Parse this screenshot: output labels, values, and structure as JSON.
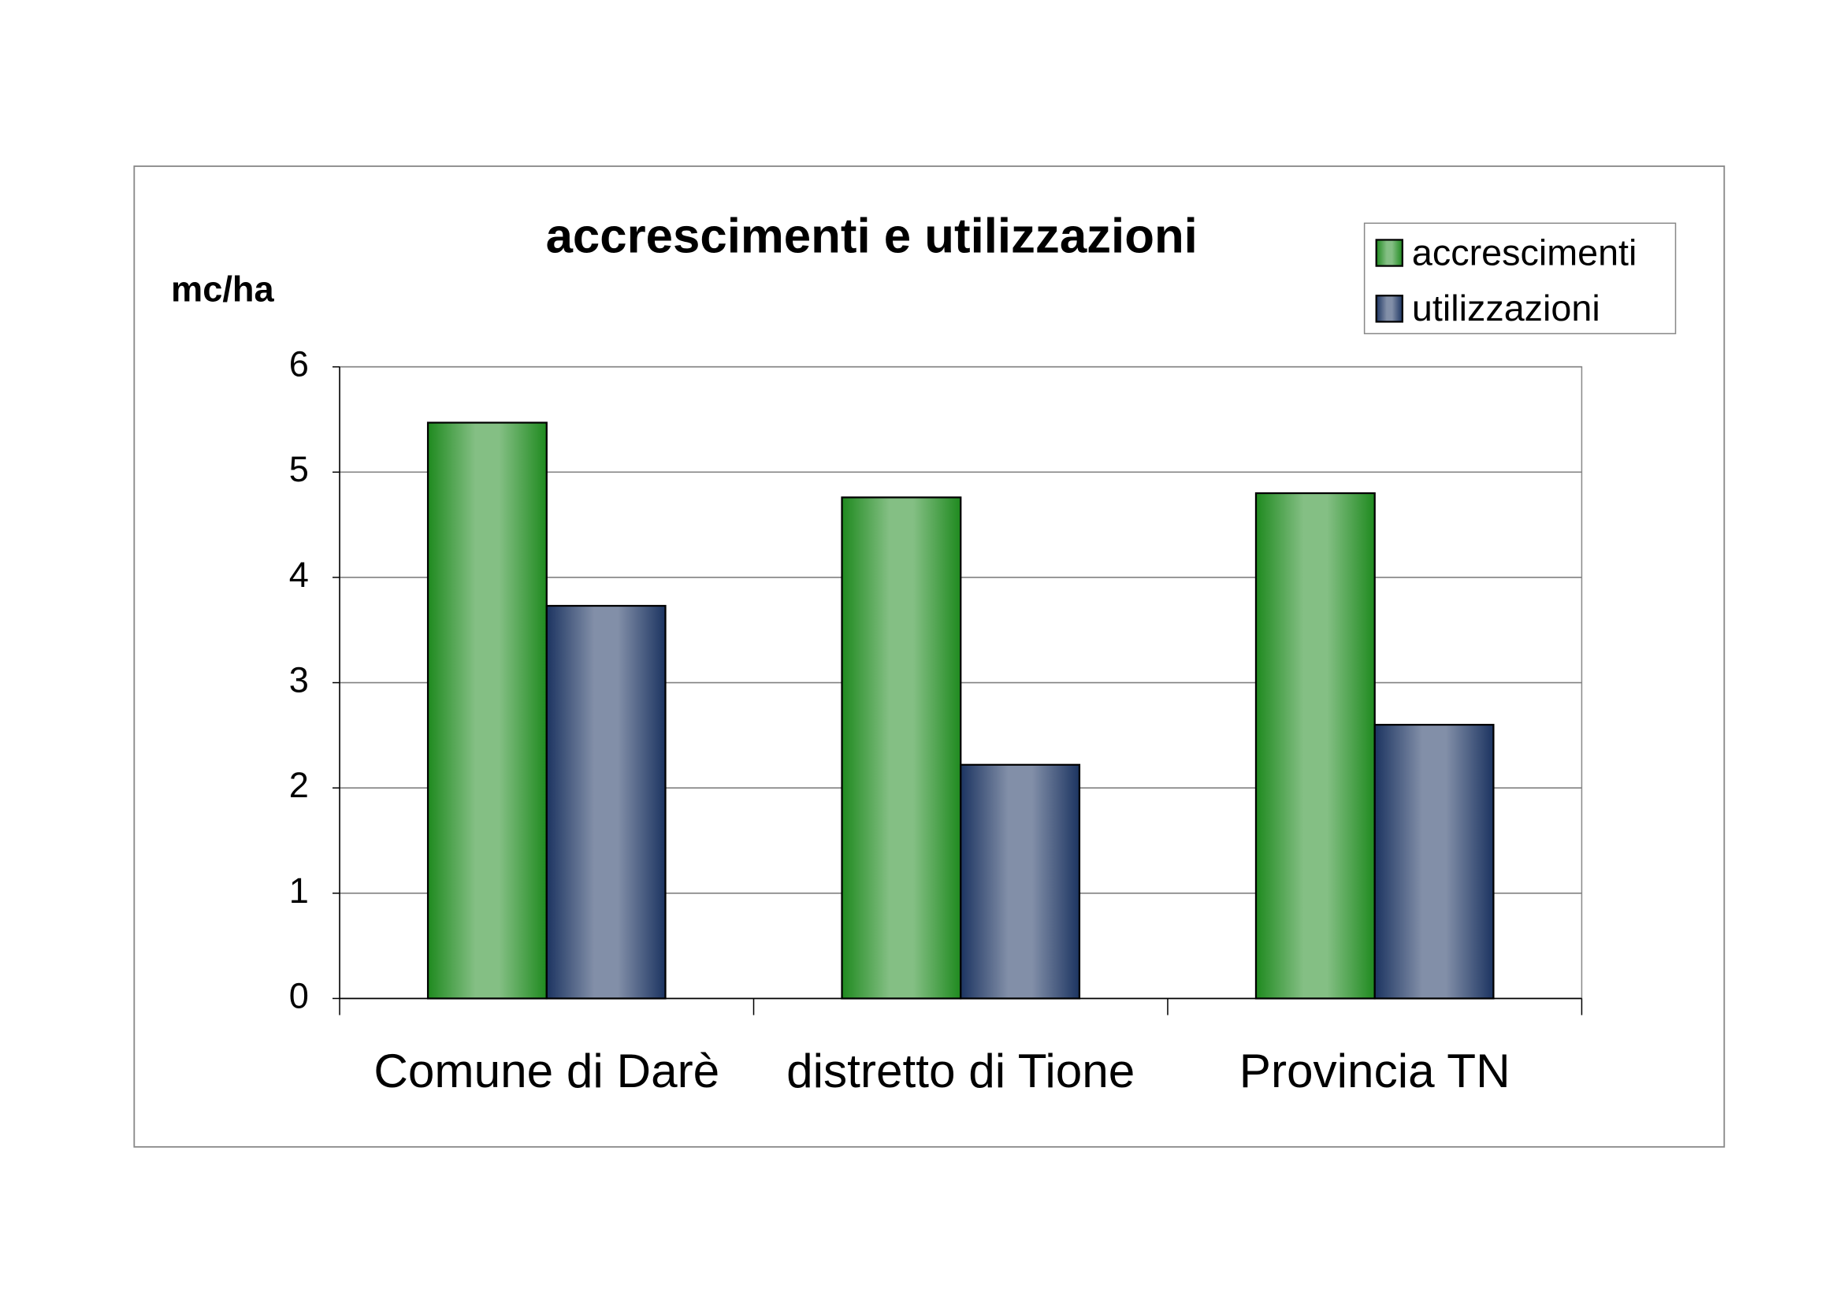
{
  "chart_data": {
    "type": "bar",
    "title": "accrescimenti e utilizzazioni",
    "y_label": "mc/ha",
    "categories": [
      "Comune di Darè",
      "distretto di Tione",
      "Provincia TN"
    ],
    "series": [
      {
        "name": "accrescimenti",
        "color": "#1f8a1f",
        "values": [
          5.47,
          4.76,
          4.8
        ]
      },
      {
        "name": "utilizzazioni",
        "color": "#1c3461",
        "values": [
          3.73,
          2.22,
          2.6
        ]
      }
    ],
    "ylim": [
      0,
      6
    ],
    "yticks": [
      0,
      1,
      2,
      3,
      4,
      5,
      6
    ],
    "grid": true,
    "legend": "top-right"
  }
}
